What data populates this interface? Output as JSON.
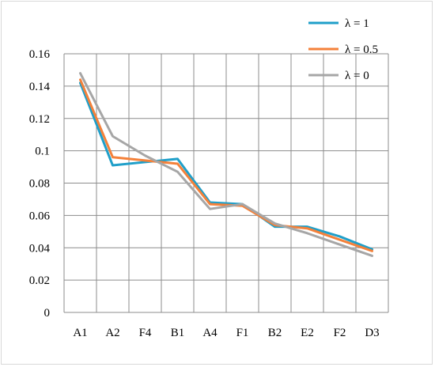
{
  "chart_data": {
    "type": "line",
    "title": "",
    "xlabel": "",
    "ylabel": "",
    "categories": [
      "A1",
      "A2",
      "F4",
      "B1",
      "A4",
      "F1",
      "B2",
      "E2",
      "F2",
      "D3"
    ],
    "ylim": [
      0,
      0.16
    ],
    "yticks": [
      0,
      0.02,
      0.04,
      0.06,
      0.08,
      0.1,
      0.12,
      0.14,
      0.16
    ],
    "ytick_labels": [
      "0",
      "0.02",
      "0.04",
      "0.06",
      "0.08",
      "0.1",
      "0.12",
      "0.14",
      "0.16"
    ],
    "grid": "both",
    "legend_position": "top-right",
    "series": [
      {
        "name": "λ = 1",
        "color": "#1f9fc9",
        "values": [
          0.142,
          0.091,
          0.093,
          0.095,
          0.068,
          0.067,
          0.053,
          0.053,
          0.047,
          0.039
        ]
      },
      {
        "name": "λ = 0.5",
        "color": "#f4813a",
        "values": [
          0.144,
          0.096,
          0.094,
          0.092,
          0.067,
          0.066,
          0.054,
          0.052,
          0.045,
          0.038
        ]
      },
      {
        "name": "λ = 0",
        "color": "#a6a6a6",
        "values": [
          0.148,
          0.109,
          0.097,
          0.087,
          0.064,
          0.067,
          0.055,
          0.049,
          0.042,
          0.035
        ]
      }
    ]
  }
}
